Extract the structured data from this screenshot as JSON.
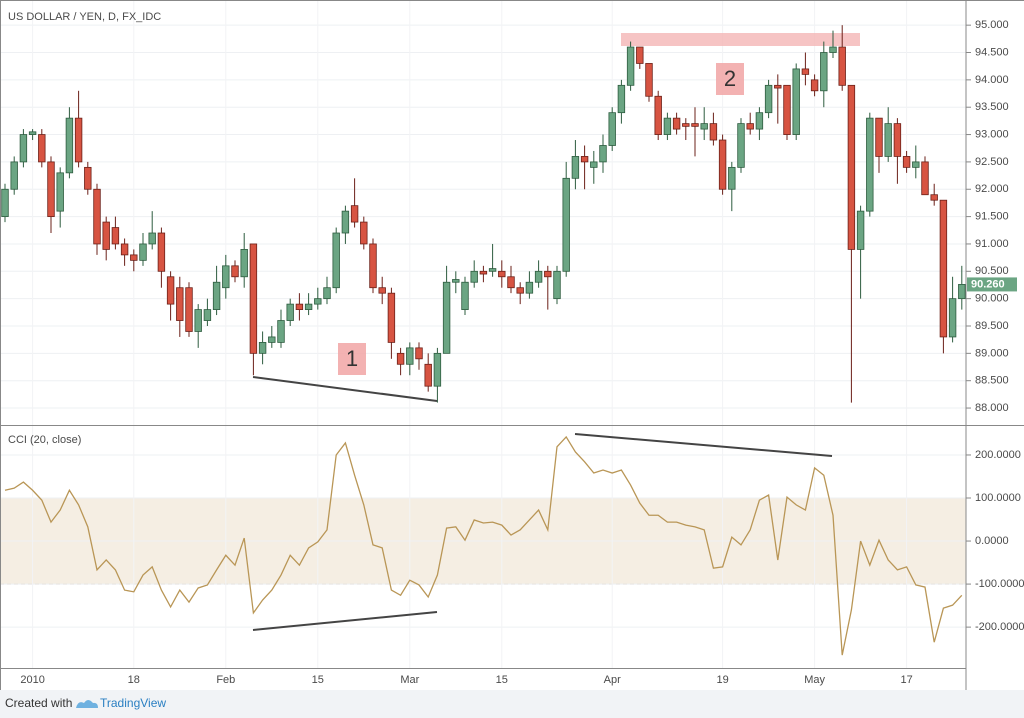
{
  "chart_data": [
    {
      "type": "candlestick",
      "title": "US DOLLAR / YEN, D, FX_IDC",
      "up_color": "#6ba583",
      "down_color": "#d75442",
      "grid": true,
      "categories": [
        null,
        null,
        null,
        "2010",
        null,
        null,
        null,
        null,
        null,
        null,
        null,
        null,
        null,
        null,
        "18",
        null,
        null,
        null,
        null,
        null,
        null,
        null,
        null,
        null,
        "Feb",
        null,
        null,
        null,
        null,
        null,
        null,
        null,
        null,
        null,
        "15",
        null,
        null,
        null,
        null,
        null,
        null,
        null,
        null,
        null,
        "Mar",
        null,
        null,
        null,
        null,
        null,
        null,
        null,
        null,
        null,
        "15",
        null,
        null,
        null,
        null,
        null,
        null,
        null,
        null,
        null,
        null,
        null,
        "Apr",
        null,
        null,
        null,
        null,
        null,
        null,
        null,
        null,
        null,
        null,
        null,
        "19",
        null,
        null,
        null,
        null,
        null,
        null,
        null,
        null,
        null,
        "May",
        null,
        null,
        null,
        null,
        null,
        null,
        null,
        null,
        null,
        "17",
        null,
        null,
        null,
        null,
        null,
        null
      ],
      "open": [
        91.5,
        92.0,
        92.5,
        93.0,
        93.0,
        92.5,
        91.6,
        92.3,
        93.3,
        92.4,
        92.0,
        91.4,
        91.3,
        91.0,
        90.8,
        90.7,
        91.0,
        91.2,
        90.4,
        90.2,
        90.2,
        89.4,
        89.6,
        89.8,
        90.2,
        90.6,
        90.4,
        91.0,
        89.0,
        89.2,
        89.2,
        89.6,
        89.9,
        89.8,
        89.9,
        90.0,
        90.2,
        91.2,
        91.7,
        91.4,
        91.0,
        90.2,
        90.1,
        89.0,
        88.8,
        89.1,
        88.8,
        88.4,
        89.0,
        90.3,
        89.8,
        90.3,
        90.5,
        90.5,
        90.5,
        90.4,
        90.2,
        90.1,
        90.3,
        90.5,
        90.0,
        90.5,
        92.2,
        92.6,
        92.4,
        92.5,
        92.8,
        93.4,
        93.9,
        94.6,
        94.3,
        93.7,
        93.0,
        93.3,
        93.2,
        93.2,
        93.1,
        93.2,
        92.9,
        92.0,
        92.4,
        93.2,
        93.1,
        93.4,
        93.9,
        93.9,
        93.0,
        94.2,
        94.0,
        93.8,
        94.5,
        94.6,
        93.9,
        90.9,
        91.6,
        93.3,
        92.6,
        93.2,
        92.6,
        92.4,
        92.5,
        91.9,
        91.8,
        89.3,
        90.0
      ],
      "high": [
        92.1,
        92.6,
        93.1,
        93.1,
        93.1,
        92.6,
        92.4,
        93.5,
        93.8,
        92.5,
        92.1,
        91.5,
        91.5,
        91.1,
        90.9,
        91.2,
        91.6,
        91.3,
        90.5,
        90.4,
        90.3,
        89.9,
        90.0,
        90.6,
        90.8,
        90.7,
        91.2,
        91.0,
        89.4,
        89.5,
        89.8,
        90.0,
        90.1,
        90.1,
        90.2,
        90.4,
        91.3,
        91.7,
        92.2,
        91.5,
        91.1,
        90.4,
        90.2,
        89.1,
        89.2,
        89.2,
        89.0,
        89.1,
        90.6,
        90.5,
        90.4,
        90.7,
        90.6,
        91.0,
        90.7,
        90.6,
        90.3,
        90.5,
        90.7,
        90.6,
        90.6,
        92.5,
        92.9,
        92.8,
        92.7,
        93.0,
        93.5,
        94.0,
        94.7,
        94.6,
        94.3,
        93.8,
        93.4,
        93.4,
        93.3,
        93.5,
        93.5,
        93.4,
        93.0,
        92.5,
        93.3,
        93.4,
        93.5,
        94.0,
        94.1,
        93.9,
        94.3,
        94.5,
        94.1,
        94.7,
        94.9,
        95.0,
        93.9,
        91.7,
        93.4,
        93.3,
        93.5,
        93.3,
        92.7,
        92.8,
        92.6,
        92.1,
        91.8,
        90.4,
        90.6
      ],
      "low": [
        91.4,
        91.9,
        92.4,
        92.9,
        92.4,
        91.2,
        91.3,
        92.2,
        92.4,
        91.9,
        90.8,
        90.7,
        90.9,
        90.6,
        90.5,
        90.6,
        90.9,
        90.2,
        89.6,
        89.3,
        89.3,
        89.1,
        89.5,
        89.7,
        90.0,
        90.3,
        90.2,
        88.6,
        88.8,
        89.1,
        89.1,
        89.5,
        89.6,
        89.7,
        89.8,
        89.9,
        90.1,
        91.0,
        91.3,
        90.9,
        90.1,
        89.9,
        88.9,
        88.6,
        88.6,
        88.7,
        88.3,
        88.1,
        89.0,
        90.1,
        89.7,
        90.2,
        90.3,
        90.4,
        90.2,
        90.1,
        89.9,
        90.0,
        90.2,
        89.8,
        89.9,
        90.4,
        92.0,
        92.0,
        92.1,
        92.3,
        92.7,
        93.2,
        93.8,
        94.2,
        93.6,
        92.9,
        92.9,
        93.0,
        92.9,
        92.6,
        92.9,
        92.8,
        91.9,
        91.6,
        92.3,
        93.0,
        92.9,
        93.3,
        93.2,
        92.9,
        92.9,
        93.9,
        93.7,
        93.5,
        94.4,
        93.8,
        88.1,
        90.0,
        91.5,
        92.3,
        92.5,
        92.1,
        92.3,
        92.2,
        91.9,
        91.7,
        89.0,
        89.2,
        89.8
      ],
      "close": [
        92.0,
        92.5,
        93.0,
        93.05,
        92.5,
        91.5,
        92.3,
        93.3,
        92.5,
        92.0,
        91.0,
        90.9,
        91.0,
        90.8,
        90.7,
        91.0,
        91.2,
        90.5,
        89.9,
        89.6,
        89.4,
        89.8,
        89.8,
        90.3,
        90.6,
        90.4,
        90.9,
        89.0,
        89.2,
        89.3,
        89.6,
        89.9,
        89.8,
        89.9,
        90.0,
        90.2,
        91.2,
        91.6,
        91.4,
        91.0,
        90.2,
        90.1,
        89.2,
        88.8,
        89.1,
        88.9,
        88.4,
        89.0,
        90.3,
        90.35,
        90.3,
        90.5,
        90.45,
        90.55,
        90.4,
        90.2,
        90.1,
        90.3,
        90.5,
        90.4,
        90.5,
        92.2,
        92.6,
        92.5,
        92.5,
        92.8,
        93.4,
        93.9,
        94.6,
        94.3,
        93.7,
        93.0,
        93.3,
        93.1,
        93.15,
        93.15,
        93.2,
        92.9,
        92.0,
        92.4,
        93.2,
        93.1,
        93.4,
        93.9,
        93.85,
        93.0,
        94.2,
        94.1,
        93.8,
        94.5,
        94.6,
        93.9,
        90.9,
        91.6,
        93.3,
        92.6,
        93.2,
        92.6,
        92.4,
        92.5,
        91.9,
        91.8,
        89.3,
        90.0,
        90.26
      ],
      "last": {
        "value": 90.26,
        "label": "90.260"
      },
      "annotations": [
        "1",
        "2"
      ],
      "ylim": [
        87.69,
        95.46
      ],
      "yticks": [
        {
          "value": 88,
          "label": "88.000"
        },
        {
          "value": 88.5,
          "label": "88.500"
        },
        {
          "value": 89,
          "label": "89.000"
        },
        {
          "value": 89.5,
          "label": "89.500"
        },
        {
          "value": 90,
          "label": "90.000"
        },
        {
          "value": 90.5,
          "label": "90.500"
        },
        {
          "value": 91,
          "label": "91.000"
        },
        {
          "value": 91.5,
          "label": "91.500"
        },
        {
          "value": 92,
          "label": "92.000"
        },
        {
          "value": 92.5,
          "label": "92.500"
        },
        {
          "value": 93,
          "label": "93.000"
        },
        {
          "value": 93.5,
          "label": "93.500"
        },
        {
          "value": 94,
          "label": "94.000"
        },
        {
          "value": 94.5,
          "label": "94.500"
        },
        {
          "value": 95,
          "label": "95.000"
        }
      ]
    },
    {
      "type": "line",
      "title": "CCI (20, close)",
      "color": "#b99656",
      "band": {
        "upper": 100,
        "lower": -100,
        "color": "#f5eee3"
      },
      "values": [
        118,
        123,
        137,
        118,
        95,
        44,
        72,
        118,
        84,
        33,
        -67,
        -44,
        -67,
        -114,
        -118,
        -79,
        -60,
        -114,
        -153,
        -114,
        -142,
        -109,
        -102,
        -67,
        -33,
        -56,
        7,
        -167,
        -137,
        -114,
        -79,
        -33,
        -56,
        -16,
        -2,
        26,
        200,
        228,
        153,
        84,
        -9,
        -16,
        -114,
        -126,
        -91,
        -102,
        -130,
        -79,
        30,
        33,
        2,
        49,
        42,
        44,
        37,
        14,
        26,
        49,
        72,
        26,
        219,
        242,
        207,
        184,
        158,
        165,
        158,
        165,
        130,
        88,
        60,
        60,
        44,
        44,
        37,
        33,
        26,
        -63,
        -60,
        9,
        -9,
        26,
        95,
        107,
        -44,
        102,
        84,
        72,
        170,
        153,
        60,
        -265,
        -160,
        0,
        -56,
        2,
        -44,
        -67,
        -60,
        -102,
        -107,
        -235,
        -156,
        -149,
        -126
      ],
      "ylim": [
        -295,
        265
      ],
      "yticks": [
        {
          "value": -200,
          "label": "-200.0000"
        },
        {
          "value": -100,
          "label": "-100.0000"
        },
        {
          "value": 0,
          "label": "0.0000"
        },
        {
          "value": 100,
          "label": "100.0000"
        },
        {
          "value": 200,
          "label": "200.0000"
        }
      ]
    }
  ],
  "footer": {
    "prefix": "Created with",
    "brand": "TradingView"
  }
}
